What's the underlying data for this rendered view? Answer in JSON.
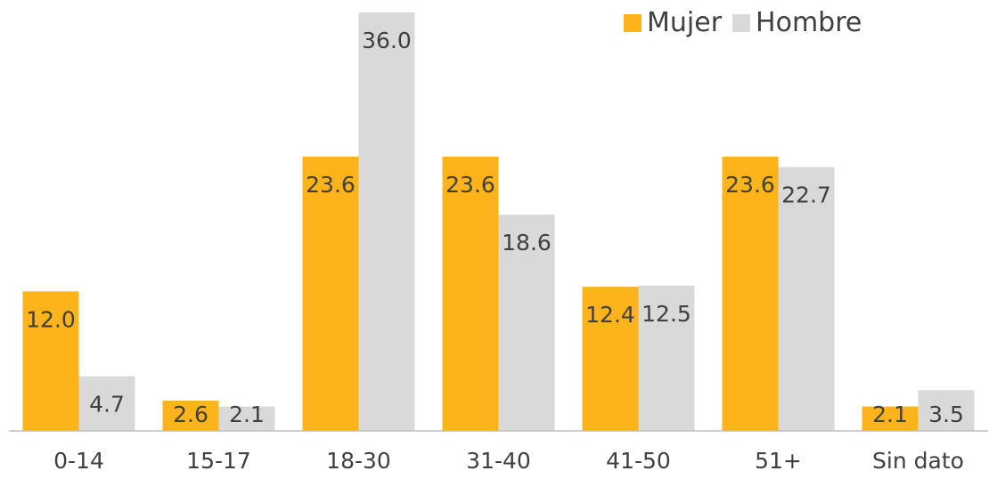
{
  "chart_data": {
    "type": "bar",
    "categories": [
      "0-14",
      "15-17",
      "18-30",
      "31-40",
      "41-50",
      "51+",
      "Sin dato"
    ],
    "series": [
      {
        "name": "Mujer",
        "values": [
          12.0,
          2.6,
          23.6,
          23.6,
          12.4,
          23.6,
          2.1
        ],
        "color": "#FDB41A"
      },
      {
        "name": "Hombre",
        "values": [
          4.7,
          2.1,
          36.0,
          18.6,
          12.5,
          22.7,
          3.5
        ],
        "color": "#D9D9D9"
      }
    ],
    "ylim": [
      0,
      36.0
    ],
    "legend_position": "top-right",
    "grid": false,
    "data_labels": true
  }
}
